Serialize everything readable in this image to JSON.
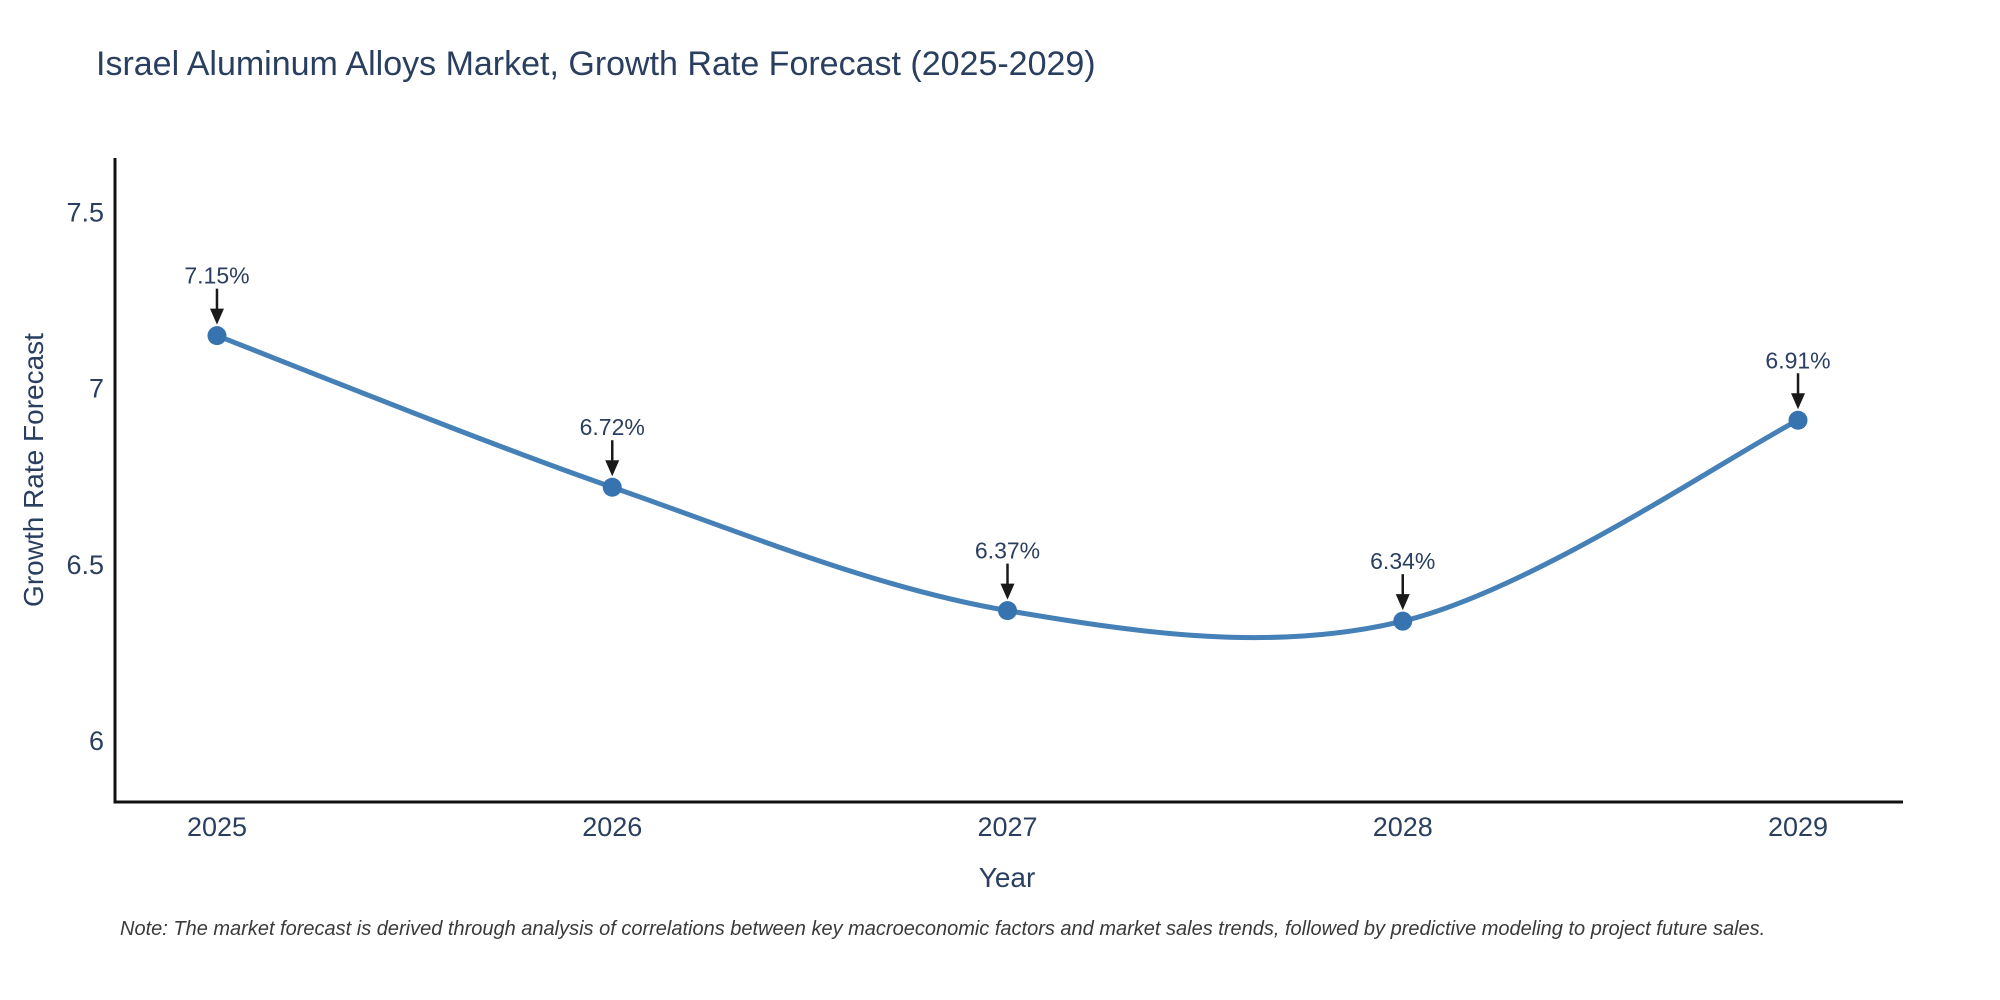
{
  "chart_data": {
    "type": "line",
    "title": "Israel Aluminum Alloys Market, Growth Rate Forecast (2025-2029)",
    "xlabel": "Year",
    "ylabel": "Growth Rate Forecast",
    "x": [
      2025,
      2026,
      2027,
      2028,
      2029
    ],
    "x_tick_labels": [
      "2025",
      "2026",
      "2027",
      "2028",
      "2029"
    ],
    "values": [
      7.15,
      6.72,
      6.37,
      6.34,
      6.91
    ],
    "point_labels": [
      "7.15%",
      "6.72%",
      "6.37%",
      "6.34%",
      "6.91%"
    ],
    "y_ticks": [
      6,
      6.5,
      7,
      7.5
    ],
    "y_tick_labels": [
      "6",
      "6.5",
      "7",
      "7.5"
    ],
    "xlim": [
      2024.742,
      2029.258
    ],
    "ylim": [
      5.827,
      7.654
    ],
    "line_shape": "spline",
    "grid": false,
    "legend": "none",
    "colors": {
      "line": "#4580b7",
      "marker": "#3773af",
      "axis": "#111111",
      "text": "#2a3f5f",
      "annotation_arrow": "#1a1a1a",
      "note_text": "#3a3a3a",
      "background": "#ffffff"
    }
  },
  "note": "Note: The market forecast is derived through analysis of correlations between key macroeconomic factors and market sales trends, followed by predictive modeling to project future sales."
}
